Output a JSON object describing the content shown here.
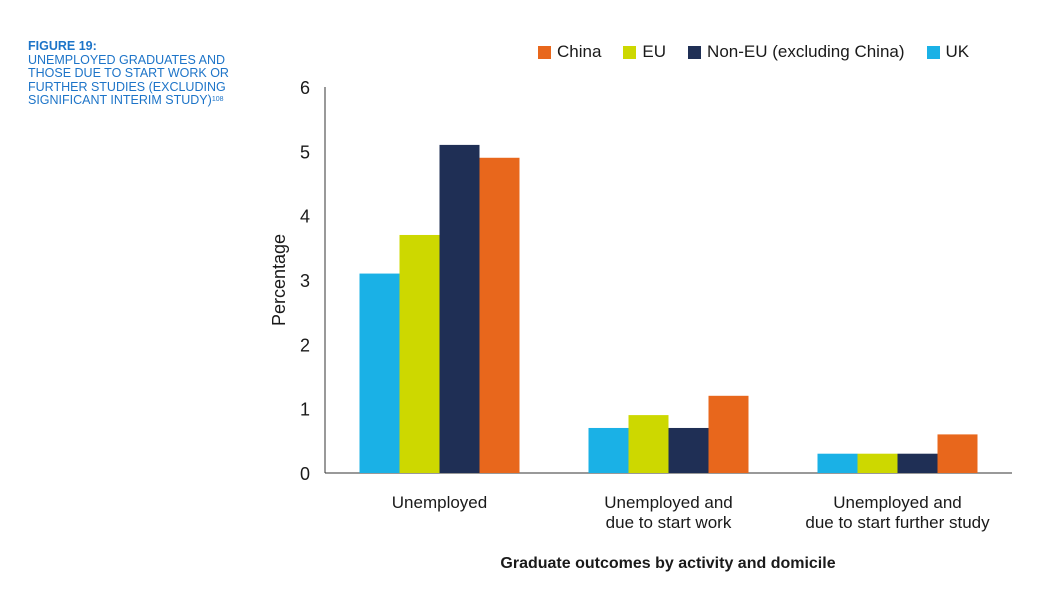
{
  "figure": {
    "label": "FIGURE 19:",
    "title": "UNEMPLOYED GRADUATES AND THOSE DUE TO START WORK OR FURTHER STUDIES (EXCLUDING SIGNIFICANT INTERIM STUDY)",
    "footnote": "108"
  },
  "legend": [
    {
      "name": "China",
      "color": "#e8671c"
    },
    {
      "name": "EU",
      "color": "#cdd800"
    },
    {
      "name": "Non-EU (excluding China)",
      "color": "#1f2f55"
    },
    {
      "name": "UK",
      "color": "#1ab1e6"
    }
  ],
  "chart_data": {
    "type": "bar",
    "xlabel": "Graduate outcomes by activity and domicile",
    "ylabel": "Percentage",
    "ylim": [
      0,
      6
    ],
    "yticks": [
      "0",
      "1",
      "2",
      "3",
      "4",
      "5",
      "6"
    ],
    "categories": [
      [
        "Unemployed"
      ],
      [
        "Unemployed and",
        "due to start work"
      ],
      [
        "Unemployed and",
        "due to start further study"
      ]
    ],
    "series": [
      {
        "name": "UK",
        "color": "#1ab1e6",
        "values": [
          3.1,
          0.7,
          0.3
        ]
      },
      {
        "name": "EU",
        "color": "#cdd800",
        "values": [
          3.7,
          0.9,
          0.3
        ]
      },
      {
        "name": "Non-EU (excluding China)",
        "color": "#1f2f55",
        "values": [
          5.1,
          0.7,
          0.3
        ]
      },
      {
        "name": "China",
        "color": "#e8671c",
        "values": [
          4.9,
          1.2,
          0.6
        ]
      }
    ],
    "legend_position": "top-right",
    "grid": false
  }
}
